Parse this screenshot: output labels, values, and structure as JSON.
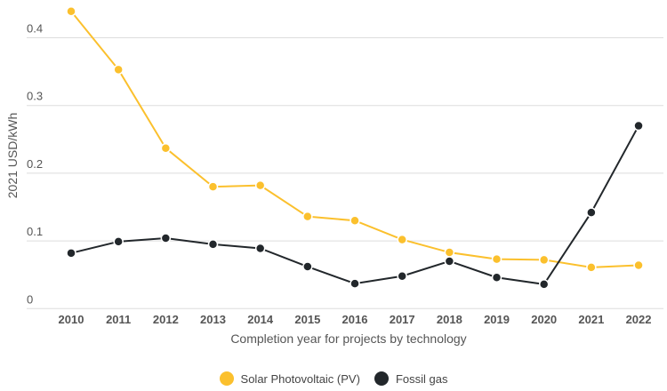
{
  "chart_data": {
    "type": "line",
    "title": "",
    "xlabel": "Completion year for projects by technology",
    "ylabel": "2021 USD/kWh",
    "ylim": [
      0,
      0.45
    ],
    "yticks": [
      0,
      0.1,
      0.2,
      0.3,
      0.4
    ],
    "ytick_labels": [
      "0",
      "0.1",
      "0.2",
      "0.3",
      "0.4"
    ],
    "grid": true,
    "legend_position": "bottom",
    "categories": [
      "2010",
      "2011",
      "2012",
      "2013",
      "2014",
      "2015",
      "2016",
      "2017",
      "2018",
      "2019",
      "2020",
      "2021",
      "2022"
    ],
    "series": [
      {
        "name": "Solar Photovoltaic (PV)",
        "color": "#fbc02d",
        "values": [
          0.439,
          0.353,
          0.237,
          0.18,
          0.182,
          0.136,
          0.13,
          0.102,
          0.083,
          0.073,
          0.072,
          0.061,
          0.064
        ]
      },
      {
        "name": "Fossil gas",
        "color": "#22272b",
        "values": [
          0.082,
          0.099,
          0.104,
          0.095,
          0.089,
          0.062,
          0.037,
          0.048,
          0.07,
          0.046,
          0.036,
          0.142,
          0.27
        ]
      }
    ]
  }
}
